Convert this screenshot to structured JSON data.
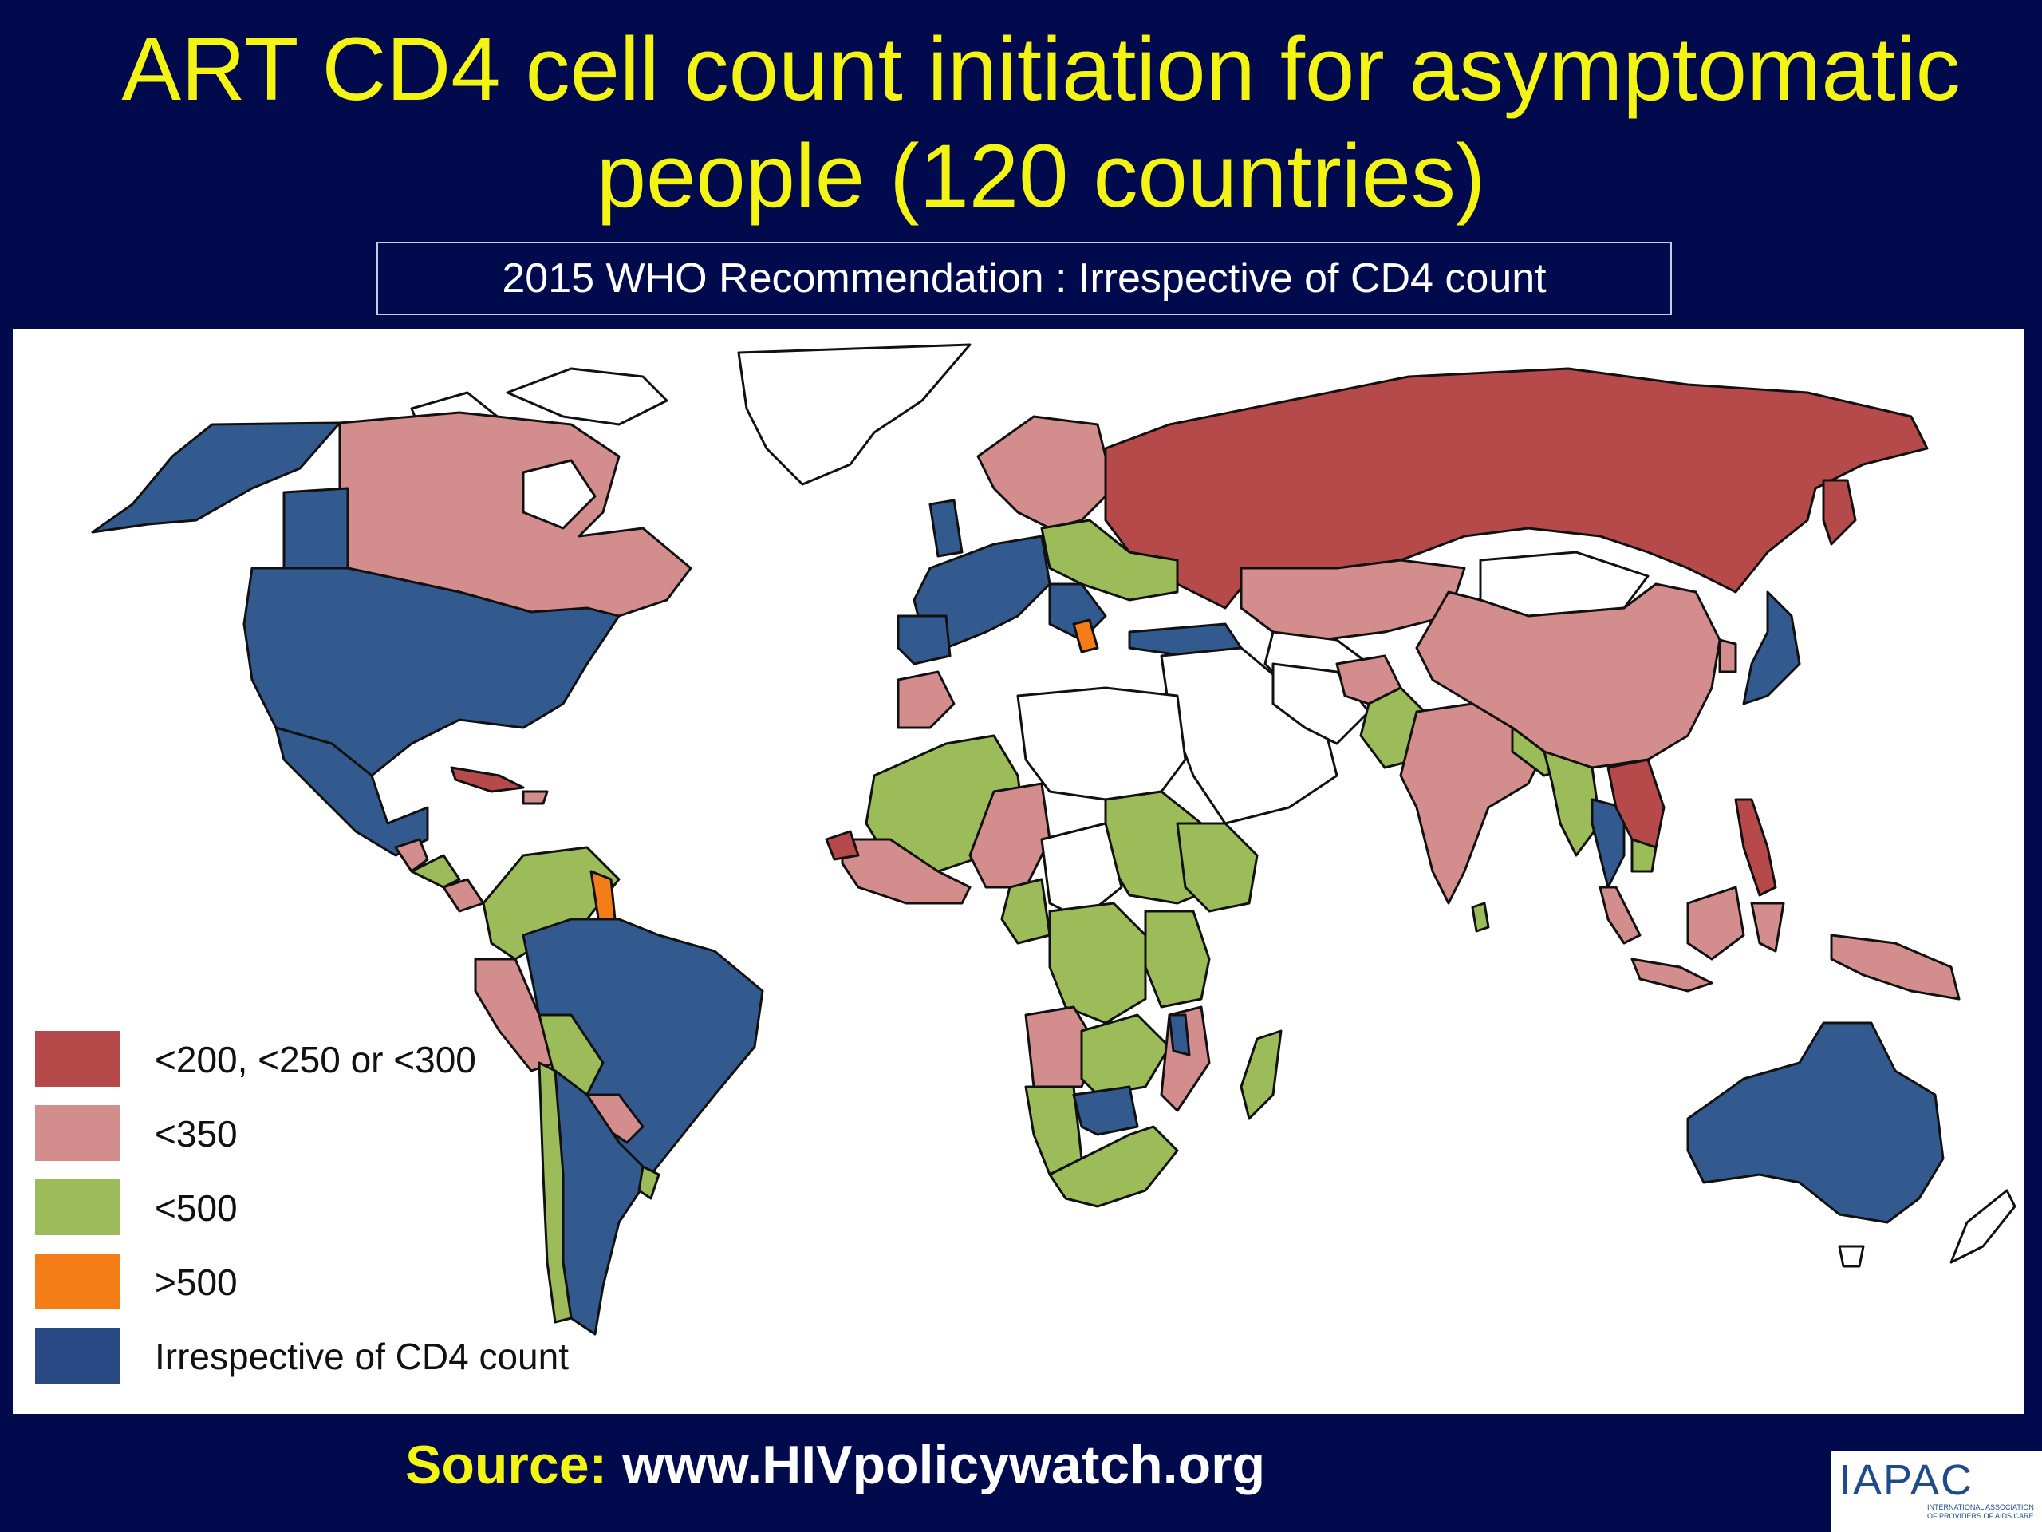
{
  "title": {
    "line1": "ART CD4 cell count initiation for asymptomatic",
    "line2": "people (120 countries)"
  },
  "subtitle": "2015 WHO Recommendation : Irrespective of CD4 count",
  "colors": {
    "background": "#020a4e",
    "title": "#f4f414",
    "lt300": "#b64a4a",
    "lt350": "#d38d8d",
    "lt500": "#9bbc58",
    "gt500": "#f57d18",
    "irrespective": "#335a8e",
    "no_data": "#ffffff"
  },
  "legend": [
    {
      "label": "<200, <250 or <300",
      "color": "#b64a4a"
    },
    {
      "label": "<350",
      "color": "#d38d8d"
    },
    {
      "label": "<500",
      "color": "#9bbc58"
    },
    {
      "label": ">500",
      "color": "#f57d18"
    },
    {
      "label": "Irrespective of CD4 count",
      "color": "#335a8e"
    }
  ],
  "source": {
    "prefix": "Source",
    "colon": ":",
    "url": "www.HIVpolicywatch.org"
  },
  "logo": {
    "text": "IAPAC",
    "tagline": "INTERNATIONAL ASSOCIATION OF PROVIDERS OF AIDS CARE"
  }
}
